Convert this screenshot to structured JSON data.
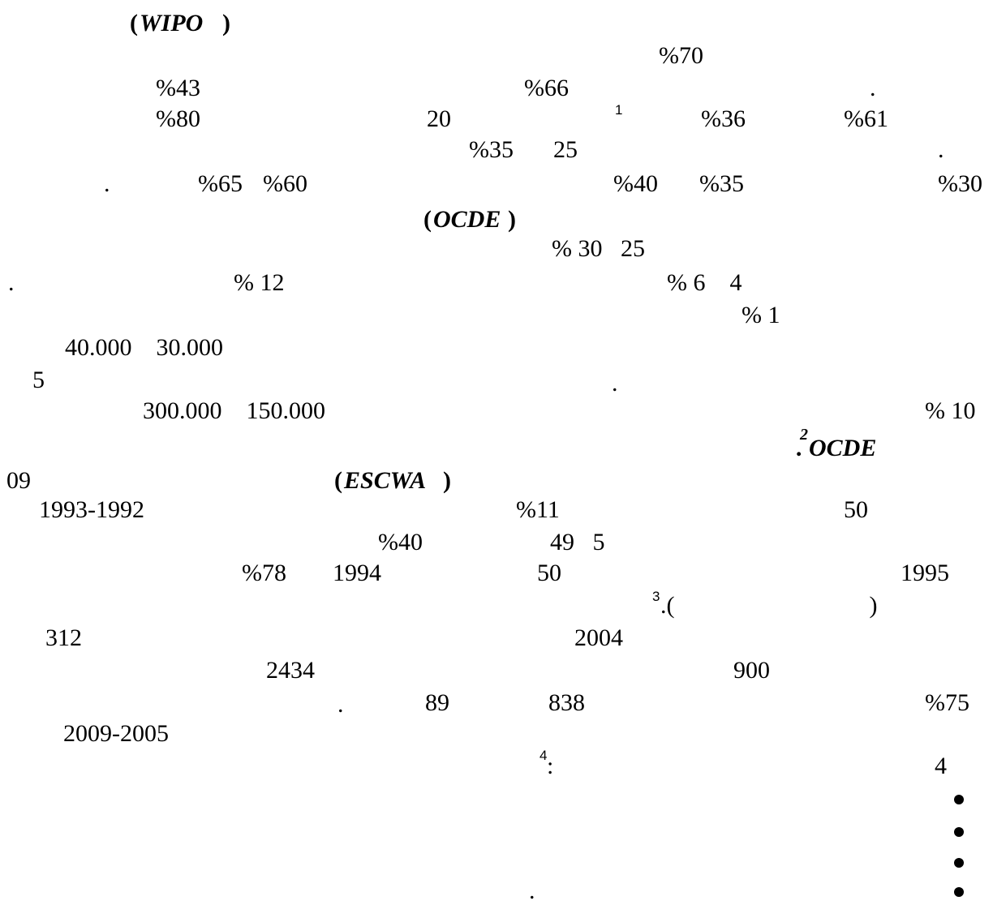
{
  "lines": {
    "l01": {
      "wipo_open": "(",
      "wipo": "WIPO",
      "wipo_close": ")"
    },
    "l02": {
      "p70": "%70"
    },
    "l03": {
      "p43": "%43",
      "p66": "%66",
      "dot": "."
    },
    "l04": {
      "p80": "%80",
      "n20": "20",
      "fn1": "1",
      "p36": "%36",
      "p61": "%61"
    },
    "l05": {
      "p35": "%35",
      "n25": "25",
      "dot": "."
    },
    "l06": {
      "dot": ".",
      "p65": "%65",
      "p60": "%60",
      "p40": "%40",
      "p35": "%35",
      "p30": "%30"
    },
    "l07": {
      "ocde_open": "(",
      "ocde": "OCDE",
      "ocde_close": ")"
    },
    "l08": {
      "range": "% 30   25"
    },
    "l09": {
      "dot": ".",
      "p12": "% 12",
      "p6": "% 6    4"
    },
    "l10": {
      "p1": "% 1"
    },
    "l11": {
      "range": "40.000    30.000"
    },
    "l12": {
      "n5": "5",
      "dot": "."
    },
    "l13": {
      "range": "300.000    150.000",
      "p10": "% 10"
    },
    "l14": {
      "fn2": "2",
      "ocde": ". OCDE"
    },
    "l15": {
      "n09": "09",
      "escwa_open": "(",
      "escwa": "ESCWA",
      "escwa_close": ")"
    },
    "l16": {
      "years": "1993-1992",
      "p11": "%11",
      "n50": "50"
    },
    "l17": {
      "p40": "%40",
      "n49": "49   5"
    },
    "l18": {
      "p78": "%78",
      "y1994": "1994",
      "n50": "50",
      "y1995": "1995"
    },
    "l19": {
      "fn3": "3",
      "paren": ".(                                )"
    },
    "l20": {
      "n312": "312",
      "y2004": "2004"
    },
    "l21": {
      "n2434": "2434",
      "n900": "900"
    },
    "l22": {
      "dot": ".",
      "n89": "89",
      "n838": "838",
      "p75": "%75"
    },
    "l23": {
      "years": "2009-2005"
    },
    "l24": {
      "fn4": "4",
      "colon": ":",
      "n4": "4"
    },
    "l25": {
      "dot": "."
    }
  },
  "bullets": 4
}
